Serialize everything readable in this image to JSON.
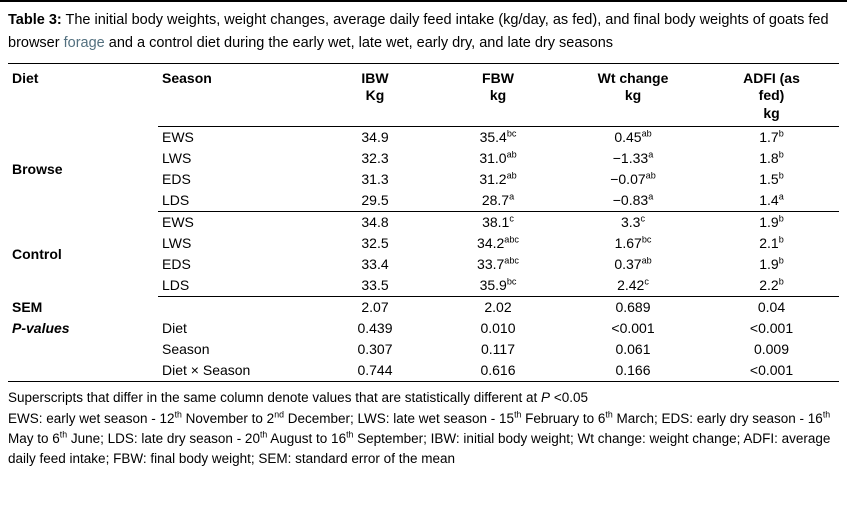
{
  "colors": {
    "background": "#ffffff",
    "text": "#000000",
    "rule": "#000000",
    "accent_link": "#53707f"
  },
  "caption": {
    "label": "Table 3:",
    "text_before": " The initial body weights, weight changes, average daily feed intake (kg/day, as fed), and final body weights of goats fed browser ",
    "link_word": "forage",
    "text_after": " and a control diet during the early wet, late wet, early dry, and late dry seasons"
  },
  "table": {
    "col_headers": {
      "diet": "Diet",
      "season": "Season",
      "ibw": "IBW\nKg",
      "fbw": "FBW\nkg",
      "wt": "Wt change\nkg",
      "adfi": "ADFI (as\nfed)\nkg"
    },
    "browse": {
      "label": "Browse",
      "rows": [
        {
          "season": "EWS",
          "ibw": [
            {
              "t": "34.9"
            }
          ],
          "fbw": [
            {
              "t": "35.4"
            },
            {
              "s": "bc"
            }
          ],
          "wt": [
            {
              "t": "0.45"
            },
            {
              "s": "ab"
            }
          ],
          "adfi": [
            {
              "t": "1.7"
            },
            {
              "s": "b"
            }
          ]
        },
        {
          "season": "LWS",
          "ibw": [
            {
              "t": "32.3"
            }
          ],
          "fbw": [
            {
              "t": "31.0"
            },
            {
              "s": "ab"
            }
          ],
          "wt": [
            {
              "t": "−1.33"
            },
            {
              "s": "a"
            }
          ],
          "adfi": [
            {
              "t": "1.8"
            },
            {
              "s": "b"
            }
          ]
        },
        {
          "season": "EDS",
          "ibw": [
            {
              "t": "31.3"
            }
          ],
          "fbw": [
            {
              "t": "31.2"
            },
            {
              "s": "ab"
            }
          ],
          "wt": [
            {
              "t": "−0.07"
            },
            {
              "s": "ab"
            }
          ],
          "adfi": [
            {
              "t": "1.5"
            },
            {
              "s": "b"
            }
          ]
        },
        {
          "season": "LDS",
          "ibw": [
            {
              "t": "29.5"
            }
          ],
          "fbw": [
            {
              "t": "28.7"
            },
            {
              "s": "a"
            }
          ],
          "wt": [
            {
              "t": "−0.83"
            },
            {
              "s": "a"
            }
          ],
          "adfi": [
            {
              "t": "1.4"
            },
            {
              "s": "a"
            }
          ]
        }
      ]
    },
    "control": {
      "label": "Control",
      "rows": [
        {
          "season": "EWS",
          "ibw": [
            {
              "t": "34.8"
            }
          ],
          "fbw": [
            {
              "t": "38.1"
            },
            {
              "s": "c"
            }
          ],
          "wt": [
            {
              "t": "3.3"
            },
            {
              "s": "c"
            }
          ],
          "adfi": [
            {
              "t": "1.9"
            },
            {
              "s": "b"
            }
          ]
        },
        {
          "season": "LWS",
          "ibw": [
            {
              "t": "32.5"
            }
          ],
          "fbw": [
            {
              "t": "34.2"
            },
            {
              "s": "abc"
            }
          ],
          "wt": [
            {
              "t": "1.67"
            },
            {
              "s": "bc"
            }
          ],
          "adfi": [
            {
              "t": "2.1"
            },
            {
              "s": "b"
            }
          ]
        },
        {
          "season": "EDS",
          "ibw": [
            {
              "t": "33.4"
            }
          ],
          "fbw": [
            {
              "t": "33.7"
            },
            {
              "s": "abc"
            }
          ],
          "wt": [
            {
              "t": "0.37"
            },
            {
              "s": "ab"
            }
          ],
          "adfi": [
            {
              "t": "1.9"
            },
            {
              "s": "b"
            }
          ]
        },
        {
          "season": "LDS",
          "ibw": [
            {
              "t": "33.5"
            }
          ],
          "fbw": [
            {
              "t": "35.9"
            },
            {
              "s": "bc"
            }
          ],
          "wt": [
            {
              "t": "2.42"
            },
            {
              "s": "c"
            }
          ],
          "adfi": [
            {
              "t": "2.2"
            },
            {
              "s": "b"
            }
          ]
        }
      ]
    },
    "sem": {
      "label": "SEM",
      "ibw": "2.07",
      "fbw": "2.02",
      "wt": "0.689",
      "adfi": "0.04"
    },
    "pvalues": {
      "label": "P-values",
      "rows": [
        {
          "season": "Diet",
          "ibw": "0.439",
          "fbw": "0.010",
          "wt": "<0.001",
          "adfi": "<0.001"
        },
        {
          "season": "Season",
          "ibw": "0.307",
          "fbw": "0.117",
          "wt": "0.061",
          "adfi": "0.009"
        },
        {
          "season": "Diet × Season",
          "ibw": "0.744",
          "fbw": "0.616",
          "wt": "0.166",
          "adfi": "<0.001"
        }
      ]
    }
  },
  "footnotes": {
    "line1": [
      {
        "t": "Superscripts that differ in the same column denote values that are statistically different at "
      },
      {
        "i": "P"
      },
      {
        "t": " <0.05"
      }
    ],
    "line2": [
      {
        "t": "EWS: early wet season - 12"
      },
      {
        "s": "th"
      },
      {
        "t": " November to 2"
      },
      {
        "s": "nd"
      },
      {
        "t": " December; LWS: late wet season - 15"
      },
      {
        "s": "th"
      },
      {
        "t": " February to 6"
      },
      {
        "s": "th"
      },
      {
        "t": " March; EDS: early dry season - 16"
      },
      {
        "s": "th"
      },
      {
        "t": " May to 6"
      },
      {
        "s": "th"
      },
      {
        "t": " June; LDS: late dry season - 20"
      },
      {
        "s": "th"
      },
      {
        "t": " August to 16"
      },
      {
        "s": "th"
      },
      {
        "t": " September; IBW: initial body weight; Wt change: weight change; ADFI: average daily feed intake; FBW: final body weight; SEM: standard error of the mean"
      }
    ]
  }
}
